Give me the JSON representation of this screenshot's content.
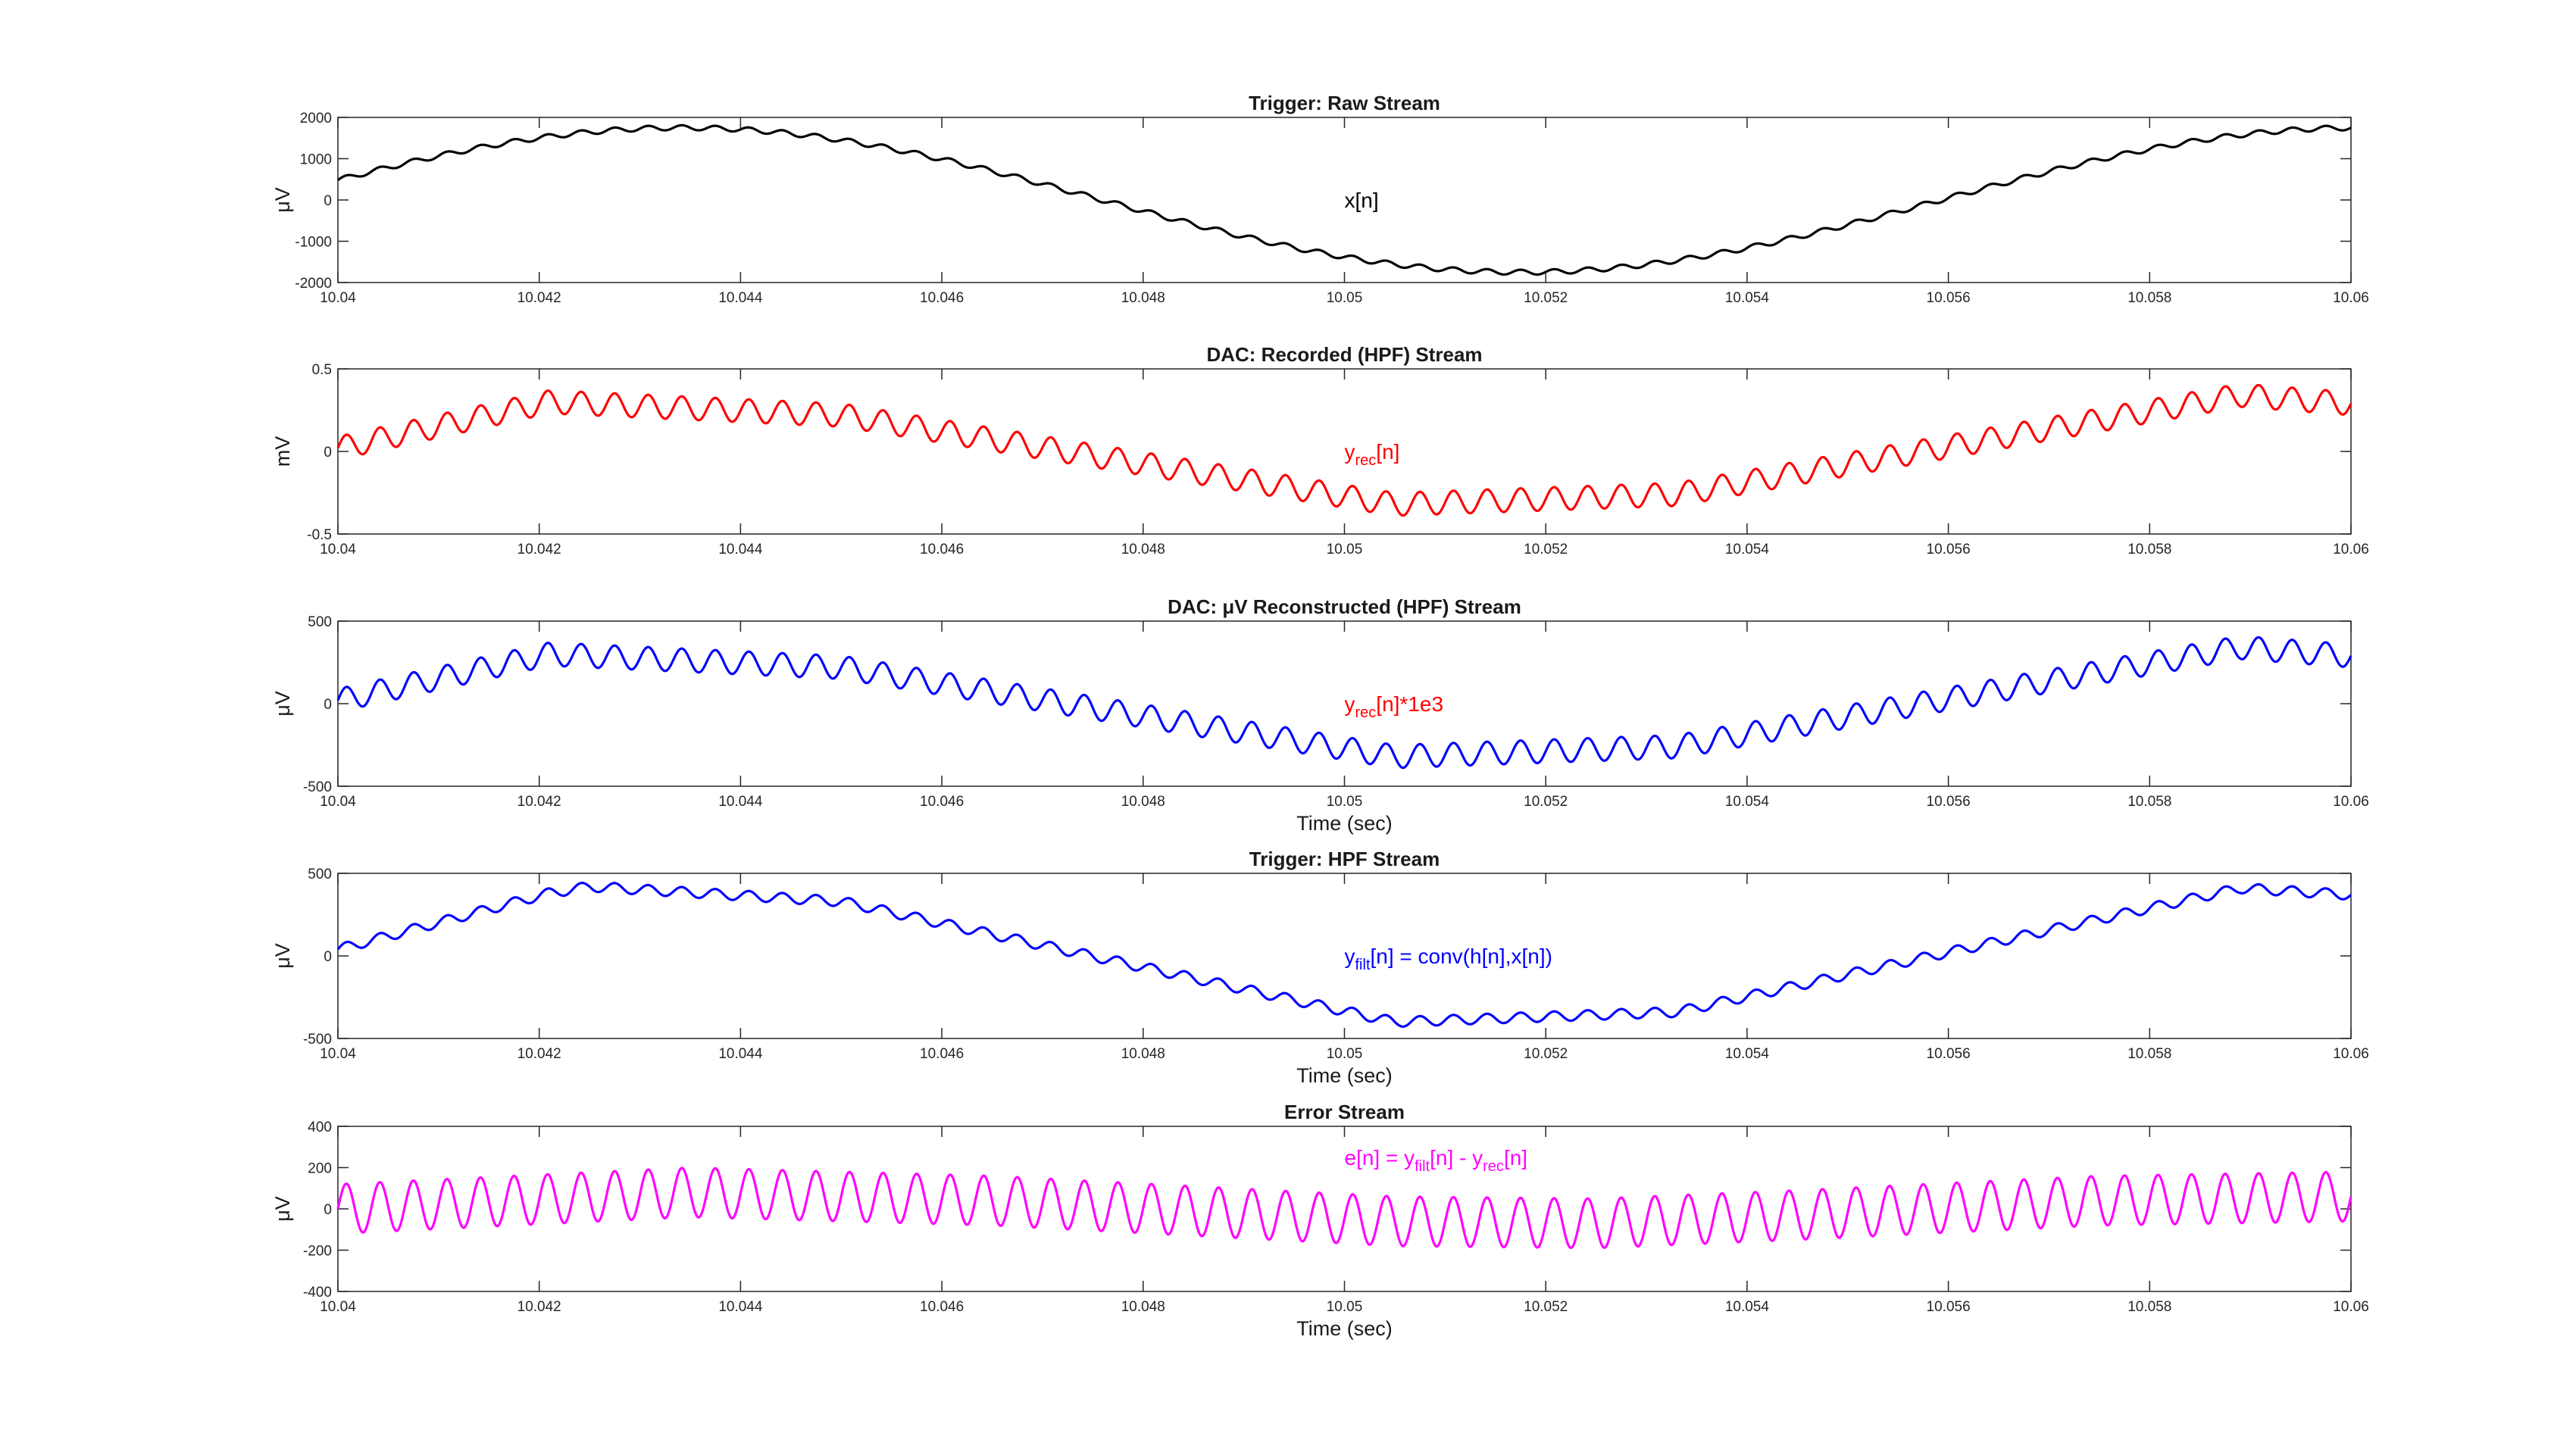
{
  "figure": {
    "background": "#ffffff",
    "noise_freq_hz": 3000,
    "sine_freq_hz": 60
  },
  "chart_data": [
    {
      "type": "line",
      "title": "Trigger: Raw Stream",
      "xlabel": "",
      "ylabel": "μV",
      "xlim": [
        10.04,
        10.06
      ],
      "ylim": [
        -2000,
        2000
      ],
      "xticks": [
        10.04,
        10.042,
        10.044,
        10.046,
        10.048,
        10.05,
        10.052,
        10.054,
        10.056,
        10.058,
        10.06
      ],
      "xtick_labels": [
        "10.04",
        "10.042",
        "10.044",
        "10.046",
        "10.048",
        "10.05",
        "10.052",
        "10.054",
        "10.056",
        "10.058",
        "10.06"
      ],
      "yticks": [
        -2000,
        -1000,
        0,
        1000,
        2000
      ],
      "ytick_labels": [
        "-2000",
        "-1000",
        "0",
        "1000",
        "2000"
      ],
      "grid": false,
      "annotation": {
        "parts": [
          {
            "t": "x[n]",
            "sub": false
          }
        ],
        "x": 10.05,
        "y": 0,
        "color": "#000000"
      },
      "series": [
        {
          "color": "#000000",
          "x_start": 10.04,
          "x_end": 10.06,
          "sine_amplitude": 1750,
          "sine_phase_deg": 232,
          "ripple_amplitude": 60
        }
      ]
    },
    {
      "type": "line",
      "title": "DAC: Recorded (HPF) Stream",
      "xlabel": "",
      "ylabel": "mV",
      "xlim": [
        10.04,
        10.06
      ],
      "ylim": [
        -0.5,
        0.5
      ],
      "xticks": [
        10.04,
        10.042,
        10.044,
        10.046,
        10.048,
        10.05,
        10.052,
        10.054,
        10.056,
        10.058,
        10.06
      ],
      "xtick_labels": [
        "10.04",
        "10.042",
        "10.044",
        "10.046",
        "10.048",
        "10.05",
        "10.052",
        "10.054",
        "10.056",
        "10.058",
        "10.06"
      ],
      "yticks": [
        -0.5,
        0,
        0.5
      ],
      "ytick_labels": [
        "-0.5",
        "0",
        "0.5"
      ],
      "grid": false,
      "annotation": {
        "parts": [
          {
            "t": "y",
            "sub": false
          },
          {
            "t": "rec",
            "sub": true
          },
          {
            "t": "[n]",
            "sub": false
          }
        ],
        "x": 10.05,
        "y": 0,
        "color": "#ff0000"
      },
      "series": [
        {
          "color": "#ff0000",
          "x_start": 10.04,
          "x_end": 10.06,
          "envelope": [
            [
              10.04,
              0.02
            ],
            [
              10.0421,
              0.3
            ],
            [
              10.045,
              0.22
            ],
            [
              10.0505,
              -0.32
            ],
            [
              10.0533,
              -0.26
            ],
            [
              10.0589,
              0.34
            ],
            [
              10.06,
              0.29
            ]
          ],
          "ripple_amplitude": 0.07
        }
      ]
    },
    {
      "type": "line",
      "title": "DAC: μV Reconstructed (HPF) Stream",
      "xlabel": "Time (sec)",
      "ylabel": "μV",
      "xlim": [
        10.04,
        10.06
      ],
      "ylim": [
        -500,
        500
      ],
      "xticks": [
        10.04,
        10.042,
        10.044,
        10.046,
        10.048,
        10.05,
        10.052,
        10.054,
        10.056,
        10.058,
        10.06
      ],
      "xtick_labels": [
        "10.04",
        "10.042",
        "10.044",
        "10.046",
        "10.048",
        "10.05",
        "10.052",
        "10.054",
        "10.056",
        "10.058",
        "10.06"
      ],
      "yticks": [
        -500,
        0,
        500
      ],
      "ytick_labels": [
        "-500",
        "0",
        "500"
      ],
      "grid": false,
      "annotation": {
        "parts": [
          {
            "t": "y",
            "sub": false
          },
          {
            "t": "rec",
            "sub": true
          },
          {
            "t": "[n]*1e3",
            "sub": false
          }
        ],
        "x": 10.05,
        "y": 0,
        "color": "#ff0000"
      },
      "series": [
        {
          "color": "#0000ff",
          "x_start": 10.04,
          "x_end": 10.06,
          "envelope": [
            [
              10.04,
              20
            ],
            [
              10.0421,
              300
            ],
            [
              10.045,
              220
            ],
            [
              10.0505,
              -320
            ],
            [
              10.0533,
              -260
            ],
            [
              10.0589,
              340
            ],
            [
              10.06,
              290
            ]
          ],
          "ripple_amplitude": 70
        }
      ]
    },
    {
      "type": "line",
      "title": "Trigger: HPF Stream",
      "xlabel": "Time (sec)",
      "ylabel": "μV",
      "xlim": [
        10.04,
        10.06
      ],
      "ylim": [
        -500,
        500
      ],
      "xticks": [
        10.04,
        10.042,
        10.044,
        10.046,
        10.048,
        10.05,
        10.052,
        10.054,
        10.056,
        10.058,
        10.06
      ],
      "xtick_labels": [
        "10.04",
        "10.042",
        "10.044",
        "10.046",
        "10.048",
        "10.05",
        "10.052",
        "10.054",
        "10.056",
        "10.058",
        "10.06"
      ],
      "yticks": [
        -500,
        0,
        500
      ],
      "ytick_labels": [
        "-500",
        "0",
        "500"
      ],
      "grid": false,
      "annotation": {
        "parts": [
          {
            "t": "y",
            "sub": false
          },
          {
            "t": "filt",
            "sub": true
          },
          {
            "t": "[n] = conv(h[n],x[n])",
            "sub": false
          }
        ],
        "x": 10.05,
        "y": 0,
        "color": "#0000ff"
      },
      "series": [
        {
          "color": "#0000ff",
          "x_start": 10.04,
          "x_end": 10.06,
          "envelope": [
            [
              10.04,
              40
            ],
            [
              10.0421,
              380
            ],
            [
              10.0425,
              420
            ],
            [
              10.045,
              330
            ],
            [
              10.0505,
              -400
            ],
            [
              10.0533,
              -340
            ],
            [
              10.0589,
              410
            ],
            [
              10.06,
              370
            ]
          ],
          "ripple_amplitude": 30
        }
      ]
    },
    {
      "type": "line",
      "title": "Error Stream",
      "xlabel": "Time (sec)",
      "ylabel": "μV",
      "xlim": [
        10.04,
        10.06
      ],
      "ylim": [
        -400,
        400
      ],
      "xticks": [
        10.04,
        10.042,
        10.044,
        10.046,
        10.048,
        10.05,
        10.052,
        10.054,
        10.056,
        10.058,
        10.06
      ],
      "xtick_labels": [
        "10.04",
        "10.042",
        "10.044",
        "10.046",
        "10.048",
        "10.05",
        "10.052",
        "10.054",
        "10.056",
        "10.058",
        "10.06"
      ],
      "yticks": [
        -400,
        -200,
        0,
        200,
        400
      ],
      "ytick_labels": [
        "-400",
        "-200",
        "0",
        "200",
        "400"
      ],
      "grid": false,
      "annotation": {
        "parts": [
          {
            "t": "e[n] = y",
            "sub": false
          },
          {
            "t": "filt",
            "sub": true
          },
          {
            "t": "[n] - y",
            "sub": false
          },
          {
            "t": "rec",
            "sub": true
          },
          {
            "t": "[n]",
            "sub": false
          }
        ],
        "x": 10.05,
        "y": 250,
        "color": "#ff00ff"
      },
      "series": [
        {
          "color": "#ff00ff",
          "x_start": 10.04,
          "x_end": 10.06,
          "envelope": [
            [
              10.04,
              0
            ],
            [
              10.0435,
              80
            ],
            [
              10.0465,
              40
            ],
            [
              10.0505,
              -60
            ],
            [
              10.0525,
              -70
            ],
            [
              10.0545,
              -30
            ],
            [
              10.0575,
              40
            ],
            [
              10.06,
              60
            ]
          ],
          "ripple_amplitude": 120
        }
      ]
    }
  ]
}
